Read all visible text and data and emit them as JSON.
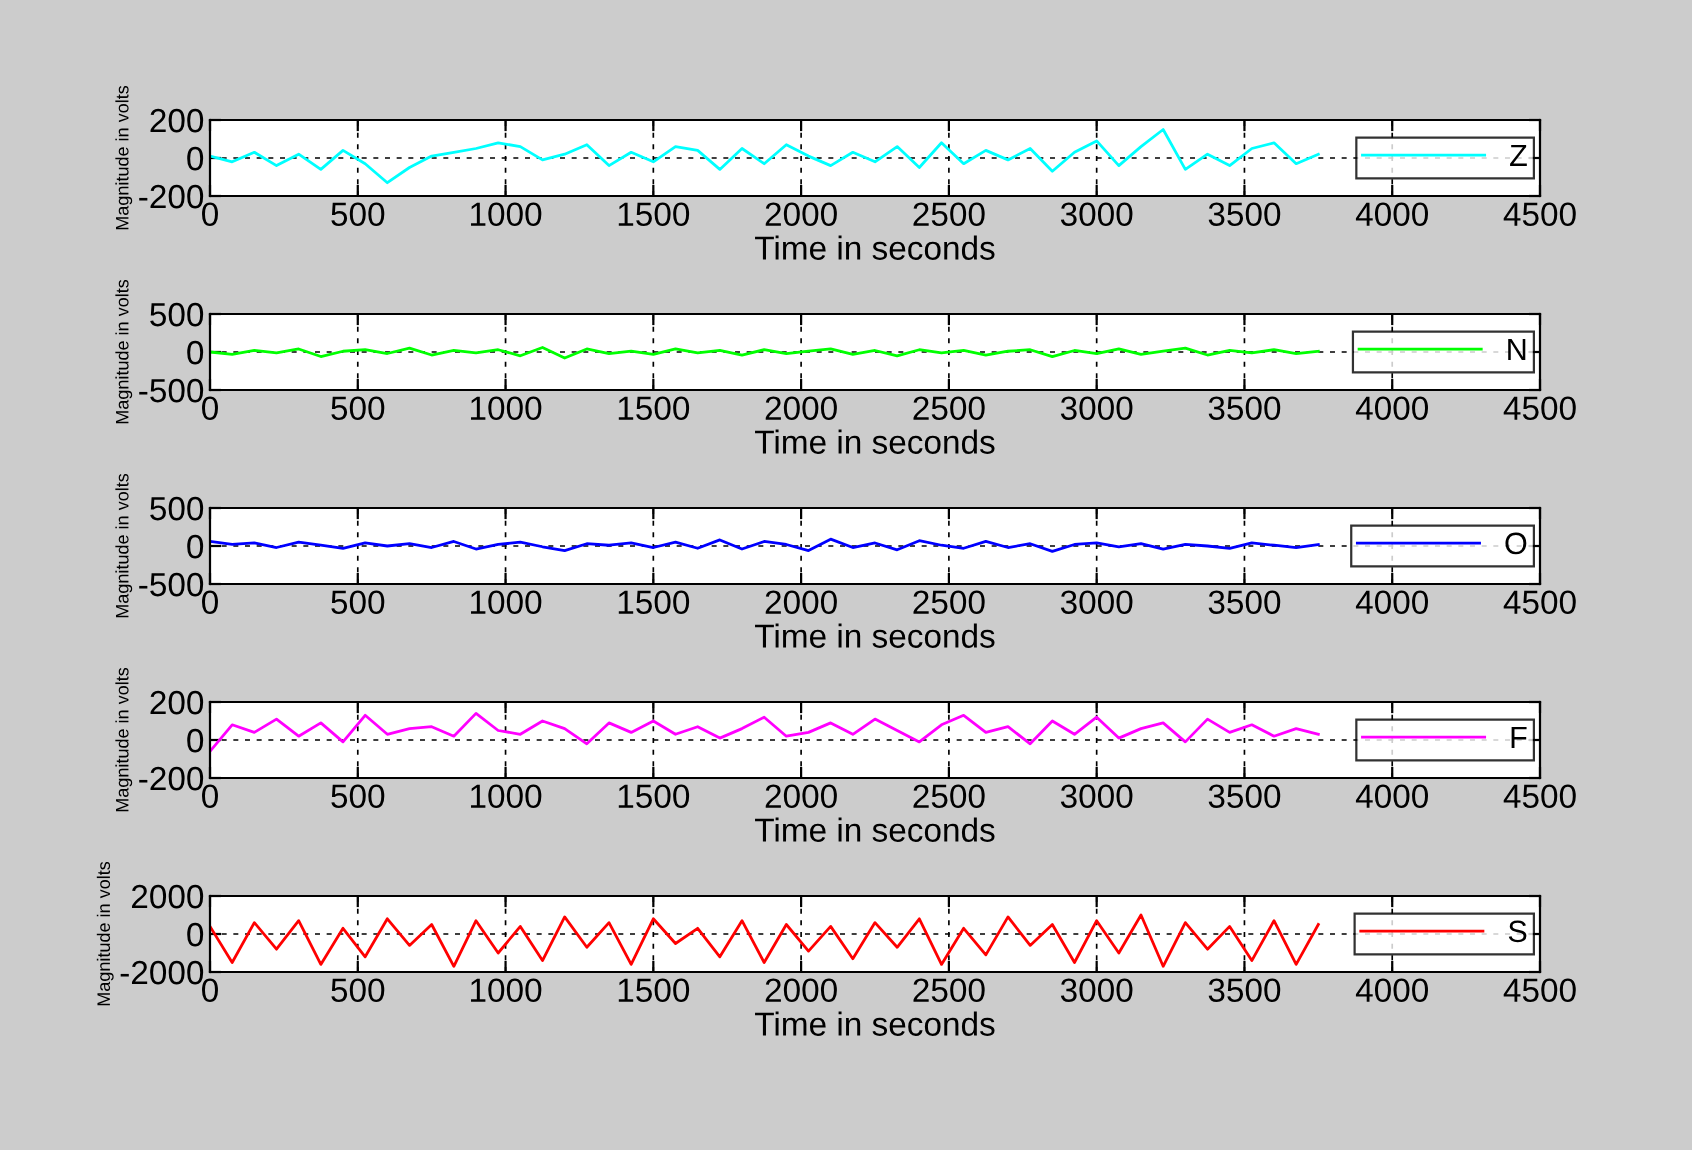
{
  "chart_data": [
    {
      "type": "line",
      "xlabel": "Time in seconds",
      "ylabel": "Magnitude in volts",
      "xlim": [
        0,
        4500
      ],
      "ylim": [
        -200,
        200
      ],
      "xticks": [
        0,
        500,
        1000,
        1500,
        2000,
        2500,
        3000,
        3500,
        4000,
        4500
      ],
      "yticks": [
        -200,
        0,
        200
      ],
      "grid": true,
      "legend": "right",
      "x": [
        0,
        75,
        150,
        225,
        300,
        375,
        450,
        525,
        600,
        675,
        750,
        825,
        900,
        975,
        1050,
        1125,
        1200,
        1275,
        1350,
        1425,
        1500,
        1575,
        1650,
        1725,
        1800,
        1875,
        1950,
        2025,
        2100,
        2175,
        2250,
        2325,
        2400,
        2475,
        2550,
        2625,
        2700,
        2775,
        2850,
        2925,
        3000,
        3075,
        3150,
        3225,
        3300,
        3375,
        3450,
        3525,
        3600,
        3675,
        3750
      ],
      "series": [
        {
          "name": "Z",
          "color": "#00ffff",
          "values": [
            10,
            -20,
            30,
            -40,
            20,
            -60,
            40,
            -30,
            -130,
            -50,
            10,
            30,
            50,
            80,
            60,
            -10,
            20,
            70,
            -40,
            30,
            -20,
            60,
            40,
            -60,
            50,
            -30,
            70,
            10,
            -40,
            30,
            -20,
            60,
            -50,
            80,
            -30,
            40,
            -10,
            50,
            -70,
            30,
            90,
            -40,
            60,
            150,
            -60,
            20,
            -40,
            50,
            80,
            -30,
            20
          ]
        }
      ]
    },
    {
      "type": "line",
      "xlabel": "Time in seconds",
      "ylabel": "Magnitude in volts",
      "xlim": [
        0,
        4500
      ],
      "ylim": [
        -500,
        500
      ],
      "xticks": [
        0,
        500,
        1000,
        1500,
        2000,
        2500,
        3000,
        3500,
        4000,
        4500
      ],
      "yticks": [
        -500,
        0,
        500
      ],
      "grid": true,
      "legend": "right",
      "x": [
        0,
        75,
        150,
        225,
        300,
        375,
        450,
        525,
        600,
        675,
        750,
        825,
        900,
        975,
        1050,
        1125,
        1200,
        1275,
        1350,
        1425,
        1500,
        1575,
        1650,
        1725,
        1800,
        1875,
        1950,
        2025,
        2100,
        2175,
        2250,
        2325,
        2400,
        2475,
        2550,
        2625,
        2700,
        2775,
        2850,
        2925,
        3000,
        3075,
        3150,
        3225,
        3300,
        3375,
        3450,
        3525,
        3600,
        3675,
        3750
      ],
      "series": [
        {
          "name": "N",
          "color": "#00ff00",
          "values": [
            0,
            -30,
            20,
            -10,
            40,
            -60,
            10,
            30,
            -20,
            50,
            -40,
            20,
            -10,
            30,
            -50,
            60,
            -80,
            40,
            -20,
            10,
            -30,
            40,
            -10,
            20,
            -40,
            30,
            -20,
            10,
            40,
            -30,
            20,
            -50,
            30,
            -10,
            20,
            -40,
            10,
            30,
            -60,
            20,
            -20,
            40,
            -30,
            10,
            50,
            -40,
            20,
            -10,
            30,
            -20,
            10
          ]
        }
      ]
    },
    {
      "type": "line",
      "xlabel": "Time in seconds",
      "ylabel": "Magnitude in volts",
      "xlim": [
        0,
        4500
      ],
      "ylim": [
        -500,
        500
      ],
      "xticks": [
        0,
        500,
        1000,
        1500,
        2000,
        2500,
        3000,
        3500,
        4000,
        4500
      ],
      "yticks": [
        -500,
        0,
        500
      ],
      "grid": true,
      "legend": "right",
      "x": [
        0,
        75,
        150,
        225,
        300,
        375,
        450,
        525,
        600,
        675,
        750,
        825,
        900,
        975,
        1050,
        1125,
        1200,
        1275,
        1350,
        1425,
        1500,
        1575,
        1650,
        1725,
        1800,
        1875,
        1950,
        2025,
        2100,
        2175,
        2250,
        2325,
        2400,
        2475,
        2550,
        2625,
        2700,
        2775,
        2850,
        2925,
        3000,
        3075,
        3150,
        3225,
        3300,
        3375,
        3450,
        3525,
        3600,
        3675,
        3750
      ],
      "series": [
        {
          "name": "O",
          "color": "#0000ff",
          "values": [
            60,
            20,
            40,
            -20,
            50,
            10,
            -30,
            40,
            0,
            30,
            -20,
            60,
            -40,
            20,
            50,
            -10,
            -60,
            30,
            10,
            40,
            -20,
            50,
            -30,
            80,
            -40,
            60,
            20,
            -60,
            90,
            -20,
            40,
            -50,
            70,
            10,
            -30,
            60,
            -20,
            30,
            -70,
            20,
            40,
            -10,
            30,
            -40,
            20,
            0,
            -30,
            40,
            10,
            -20,
            20
          ]
        }
      ]
    },
    {
      "type": "line",
      "xlabel": "Time in seconds",
      "ylabel": "Magnitude in volts",
      "xlim": [
        0,
        4500
      ],
      "ylim": [
        -200,
        200
      ],
      "xticks": [
        0,
        500,
        1000,
        1500,
        2000,
        2500,
        3000,
        3500,
        4000,
        4500
      ],
      "yticks": [
        -200,
        0,
        200
      ],
      "grid": true,
      "legend": "right",
      "x": [
        0,
        75,
        150,
        225,
        300,
        375,
        450,
        525,
        600,
        675,
        750,
        825,
        900,
        975,
        1050,
        1125,
        1200,
        1275,
        1350,
        1425,
        1500,
        1575,
        1650,
        1725,
        1800,
        1875,
        1950,
        2025,
        2100,
        2175,
        2250,
        2325,
        2400,
        2475,
        2550,
        2625,
        2700,
        2775,
        2850,
        2925,
        3000,
        3075,
        3150,
        3225,
        3300,
        3375,
        3450,
        3525,
        3600,
        3675,
        3750
      ],
      "series": [
        {
          "name": "F",
          "color": "#ff00ff",
          "values": [
            -60,
            80,
            40,
            110,
            20,
            90,
            -10,
            130,
            30,
            60,
            70,
            20,
            140,
            50,
            30,
            100,
            60,
            -20,
            90,
            40,
            100,
            30,
            70,
            10,
            60,
            120,
            20,
            40,
            90,
            30,
            110,
            50,
            -10,
            80,
            130,
            40,
            70,
            -20,
            100,
            30,
            120,
            10,
            60,
            90,
            -10,
            110,
            40,
            80,
            20,
            60,
            30
          ]
        }
      ]
    },
    {
      "type": "line",
      "xlabel": "Time in seconds",
      "ylabel": "Magnitude in volts",
      "xlim": [
        0,
        4500
      ],
      "ylim": [
        -2000,
        2000
      ],
      "xticks": [
        0,
        500,
        1000,
        1500,
        2000,
        2500,
        3000,
        3500,
        4000,
        4500
      ],
      "yticks": [
        -2000,
        0,
        2000
      ],
      "grid": true,
      "legend": "right",
      "x": [
        0,
        75,
        150,
        225,
        300,
        375,
        450,
        525,
        600,
        675,
        750,
        825,
        900,
        975,
        1050,
        1125,
        1200,
        1275,
        1350,
        1425,
        1500,
        1575,
        1650,
        1725,
        1800,
        1875,
        1950,
        2025,
        2100,
        2175,
        2250,
        2325,
        2400,
        2475,
        2550,
        2625,
        2700,
        2775,
        2850,
        2925,
        3000,
        3075,
        3150,
        3225,
        3300,
        3375,
        3450,
        3525,
        3600,
        3675,
        3750
      ],
      "series": [
        {
          "name": "S",
          "color": "#ff0000",
          "values": [
            400,
            -1500,
            600,
            -800,
            700,
            -1600,
            300,
            -1200,
            800,
            -600,
            500,
            -1700,
            700,
            -1000,
            400,
            -1400,
            900,
            -700,
            600,
            -1600,
            800,
            -500,
            300,
            -1200,
            700,
            -1500,
            500,
            -900,
            400,
            -1300,
            600,
            -700,
            800,
            -1600,
            300,
            -1100,
            900,
            -600,
            500,
            -1500,
            700,
            -1000,
            1000,
            -1700,
            600,
            -800,
            400,
            -1400,
            700,
            -1600,
            500
          ]
        }
      ]
    }
  ]
}
